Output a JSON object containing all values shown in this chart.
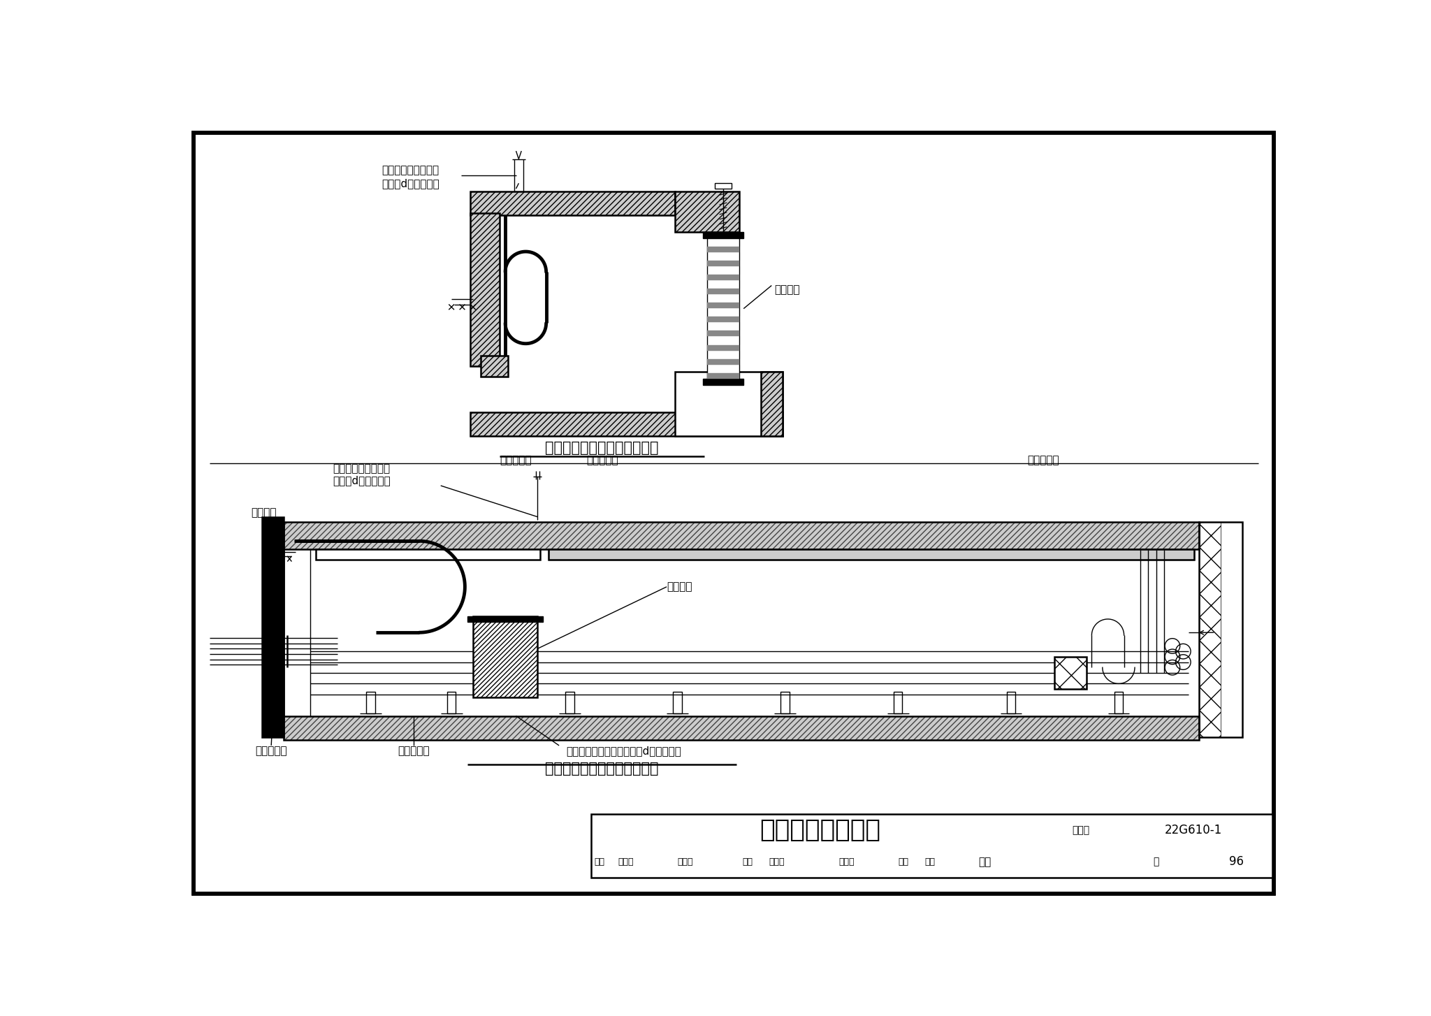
{
  "title_main": "电缆、电线及避雷",
  "fig_number": "22G610-1",
  "page": "96",
  "page_label": "页",
  "fig_set_label": "图集号",
  "diagram1_title": "电缆、电线连接示意图（一）",
  "diagram2_title": "电缆、电线连接示意图（二）",
  "label_zhenzhizuo1": "隔震支座",
  "label_zhenzhizuo2": "隔震支座",
  "label_daoxian1_line1": "导线和蛇形软管留出",
  "label_daoxian1_line2": "不小于d的多余长度",
  "label_daoxian2_line1": "导线和蛇形软管留出",
  "label_daoxian2_line2": "不小于d的多余长度",
  "label_daoxian3": "导线和蛇形软管留出不小于d的多余长度",
  "label_shiwai": "室外地坪",
  "label_dianxian": "电线电缆管",
  "label_dianlanqijia1": "电缆管桥架",
  "label_dianlanqijia2": "电缆管桥架",
  "label_chuliangyumai": "穿梁预埋管",
  "label_dianlanguanjia": "电缆管支架",
  "bg_color": "#ffffff",
  "line_color": "#000000",
  "font_cn": "SimSun",
  "font_cn_bold": "SimHei"
}
